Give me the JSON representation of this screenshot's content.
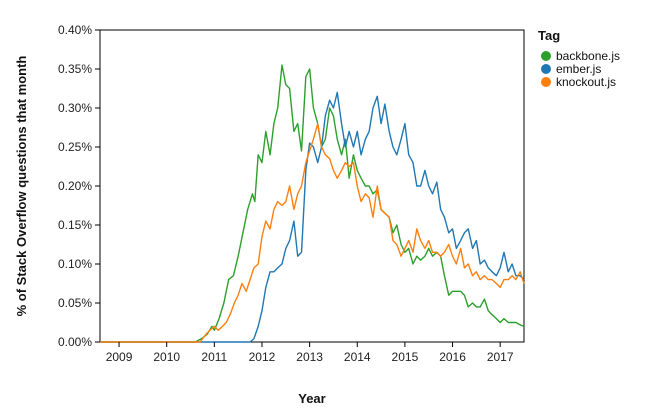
{
  "chart_data": {
    "type": "line",
    "title": "",
    "xlabel": "Year",
    "ylabel": "% of Stack Overflow questions that month",
    "xlim": [
      2008.6,
      2017.5
    ],
    "ylim": [
      0,
      0.4
    ],
    "x_ticks": [
      2009,
      2010,
      2011,
      2012,
      2013,
      2014,
      2015,
      2016,
      2017
    ],
    "x_tick_labels": [
      "2009",
      "2010",
      "2011",
      "2012",
      "2013",
      "2014",
      "2015",
      "2016",
      "2017"
    ],
    "y_ticks": [
      0,
      0.05,
      0.1,
      0.15,
      0.2,
      0.25,
      0.3,
      0.35,
      0.4
    ],
    "y_tick_labels": [
      "0.00%",
      "0.05%",
      "0.10%",
      "0.15%",
      "0.20%",
      "0.25%",
      "0.30%",
      "0.35%",
      "0.40%"
    ],
    "grid": false,
    "legend": {
      "title": "Tag",
      "placement": "right"
    },
    "series": [
      {
        "name": "backbone.js",
        "color": "#2ca02c",
        "points": [
          [
            2008.6,
            0
          ],
          [
            2010.6,
            0
          ],
          [
            2010.75,
            0.005
          ],
          [
            2010.85,
            0.01
          ],
          [
            2010.95,
            0.02
          ],
          [
            2011.0,
            0.015
          ],
          [
            2011.1,
            0.03
          ],
          [
            2011.2,
            0.05
          ],
          [
            2011.3,
            0.08
          ],
          [
            2011.4,
            0.085
          ],
          [
            2011.5,
            0.11
          ],
          [
            2011.6,
            0.14
          ],
          [
            2011.7,
            0.17
          ],
          [
            2011.8,
            0.19
          ],
          [
            2011.85,
            0.18
          ],
          [
            2011.92,
            0.24
          ],
          [
            2012.0,
            0.23
          ],
          [
            2012.08,
            0.27
          ],
          [
            2012.17,
            0.24
          ],
          [
            2012.25,
            0.28
          ],
          [
            2012.33,
            0.3
          ],
          [
            2012.42,
            0.355
          ],
          [
            2012.5,
            0.33
          ],
          [
            2012.58,
            0.325
          ],
          [
            2012.67,
            0.27
          ],
          [
            2012.75,
            0.28
          ],
          [
            2012.83,
            0.245
          ],
          [
            2012.92,
            0.34
          ],
          [
            2013.0,
            0.35
          ],
          [
            2013.08,
            0.3
          ],
          [
            2013.17,
            0.28
          ],
          [
            2013.25,
            0.25
          ],
          [
            2013.33,
            0.26
          ],
          [
            2013.42,
            0.3
          ],
          [
            2013.5,
            0.29
          ],
          [
            2013.58,
            0.26
          ],
          [
            2013.67,
            0.24
          ],
          [
            2013.75,
            0.26
          ],
          [
            2013.83,
            0.21
          ],
          [
            2013.92,
            0.24
          ],
          [
            2014.0,
            0.22
          ],
          [
            2014.08,
            0.21
          ],
          [
            2014.17,
            0.2
          ],
          [
            2014.25,
            0.2
          ],
          [
            2014.33,
            0.19
          ],
          [
            2014.42,
            0.195
          ],
          [
            2014.5,
            0.17
          ],
          [
            2014.58,
            0.165
          ],
          [
            2014.67,
            0.16
          ],
          [
            2014.75,
            0.14
          ],
          [
            2014.83,
            0.15
          ],
          [
            2014.92,
            0.125
          ],
          [
            2015.0,
            0.115
          ],
          [
            2015.08,
            0.12
          ],
          [
            2015.17,
            0.1
          ],
          [
            2015.25,
            0.11
          ],
          [
            2015.33,
            0.105
          ],
          [
            2015.42,
            0.11
          ],
          [
            2015.5,
            0.12
          ],
          [
            2015.58,
            0.11
          ],
          [
            2015.67,
            0.115
          ],
          [
            2015.75,
            0.11
          ],
          [
            2015.83,
            0.085
          ],
          [
            2015.92,
            0.06
          ],
          [
            2016.0,
            0.065
          ],
          [
            2016.08,
            0.065
          ],
          [
            2016.17,
            0.065
          ],
          [
            2016.25,
            0.06
          ],
          [
            2016.33,
            0.045
          ],
          [
            2016.42,
            0.05
          ],
          [
            2016.5,
            0.045
          ],
          [
            2016.58,
            0.045
          ],
          [
            2016.67,
            0.055
          ],
          [
            2016.75,
            0.04
          ],
          [
            2016.83,
            0.035
          ],
          [
            2016.92,
            0.03
          ],
          [
            2017.0,
            0.025
          ],
          [
            2017.08,
            0.03
          ],
          [
            2017.17,
            0.025
          ],
          [
            2017.25,
            0.025
          ],
          [
            2017.33,
            0.025
          ],
          [
            2017.42,
            0.022
          ],
          [
            2017.5,
            0.02
          ]
        ]
      },
      {
        "name": "ember.js",
        "color": "#1f77b4",
        "points": [
          [
            2008.6,
            0
          ],
          [
            2011.75,
            0
          ],
          [
            2011.83,
            0.004
          ],
          [
            2011.92,
            0.02
          ],
          [
            2012.0,
            0.04
          ],
          [
            2012.08,
            0.07
          ],
          [
            2012.17,
            0.09
          ],
          [
            2012.25,
            0.09
          ],
          [
            2012.33,
            0.095
          ],
          [
            2012.42,
            0.1
          ],
          [
            2012.5,
            0.12
          ],
          [
            2012.58,
            0.13
          ],
          [
            2012.67,
            0.155
          ],
          [
            2012.75,
            0.11
          ],
          [
            2012.83,
            0.115
          ],
          [
            2012.92,
            0.22
          ],
          [
            2013.0,
            0.255
          ],
          [
            2013.08,
            0.25
          ],
          [
            2013.17,
            0.23
          ],
          [
            2013.25,
            0.25
          ],
          [
            2013.33,
            0.29
          ],
          [
            2013.42,
            0.31
          ],
          [
            2013.5,
            0.3
          ],
          [
            2013.58,
            0.32
          ],
          [
            2013.67,
            0.28
          ],
          [
            2013.75,
            0.25
          ],
          [
            2013.83,
            0.27
          ],
          [
            2013.92,
            0.25
          ],
          [
            2014.0,
            0.27
          ],
          [
            2014.08,
            0.24
          ],
          [
            2014.17,
            0.26
          ],
          [
            2014.25,
            0.27
          ],
          [
            2014.33,
            0.3
          ],
          [
            2014.42,
            0.315
          ],
          [
            2014.5,
            0.28
          ],
          [
            2014.58,
            0.305
          ],
          [
            2014.67,
            0.27
          ],
          [
            2014.75,
            0.25
          ],
          [
            2014.83,
            0.24
          ],
          [
            2014.92,
            0.26
          ],
          [
            2015.0,
            0.28
          ],
          [
            2015.08,
            0.24
          ],
          [
            2015.17,
            0.23
          ],
          [
            2015.25,
            0.2
          ],
          [
            2015.33,
            0.2
          ],
          [
            2015.42,
            0.22
          ],
          [
            2015.5,
            0.2
          ],
          [
            2015.58,
            0.19
          ],
          [
            2015.67,
            0.205
          ],
          [
            2015.75,
            0.17
          ],
          [
            2015.83,
            0.16
          ],
          [
            2015.92,
            0.14
          ],
          [
            2016.0,
            0.145
          ],
          [
            2016.08,
            0.12
          ],
          [
            2016.17,
            0.13
          ],
          [
            2016.25,
            0.14
          ],
          [
            2016.33,
            0.145
          ],
          [
            2016.42,
            0.12
          ],
          [
            2016.5,
            0.13
          ],
          [
            2016.58,
            0.1
          ],
          [
            2016.67,
            0.105
          ],
          [
            2016.75,
            0.095
          ],
          [
            2016.83,
            0.09
          ],
          [
            2016.92,
            0.085
          ],
          [
            2017.0,
            0.095
          ],
          [
            2017.08,
            0.115
          ],
          [
            2017.17,
            0.09
          ],
          [
            2017.25,
            0.1
          ],
          [
            2017.33,
            0.085
          ],
          [
            2017.42,
            0.085
          ],
          [
            2017.5,
            0.08
          ]
        ]
      },
      {
        "name": "knockout.js",
        "color": "#ff7f0e",
        "points": [
          [
            2008.6,
            0
          ],
          [
            2010.7,
            0
          ],
          [
            2010.8,
            0.008
          ],
          [
            2010.9,
            0.015
          ],
          [
            2011.0,
            0.02
          ],
          [
            2011.08,
            0.015
          ],
          [
            2011.17,
            0.02
          ],
          [
            2011.25,
            0.025
          ],
          [
            2011.33,
            0.035
          ],
          [
            2011.42,
            0.05
          ],
          [
            2011.5,
            0.06
          ],
          [
            2011.58,
            0.075
          ],
          [
            2011.67,
            0.065
          ],
          [
            2011.75,
            0.08
          ],
          [
            2011.83,
            0.095
          ],
          [
            2011.92,
            0.1
          ],
          [
            2012.0,
            0.135
          ],
          [
            2012.08,
            0.155
          ],
          [
            2012.17,
            0.145
          ],
          [
            2012.25,
            0.17
          ],
          [
            2012.33,
            0.18
          ],
          [
            2012.42,
            0.175
          ],
          [
            2012.5,
            0.18
          ],
          [
            2012.58,
            0.2
          ],
          [
            2012.67,
            0.17
          ],
          [
            2012.75,
            0.19
          ],
          [
            2012.83,
            0.2
          ],
          [
            2012.92,
            0.23
          ],
          [
            2013.0,
            0.245
          ],
          [
            2013.08,
            0.26
          ],
          [
            2013.17,
            0.28
          ],
          [
            2013.25,
            0.25
          ],
          [
            2013.33,
            0.24
          ],
          [
            2013.42,
            0.235
          ],
          [
            2013.5,
            0.22
          ],
          [
            2013.58,
            0.21
          ],
          [
            2013.67,
            0.22
          ],
          [
            2013.75,
            0.23
          ],
          [
            2013.83,
            0.225
          ],
          [
            2013.92,
            0.23
          ],
          [
            2014.0,
            0.2
          ],
          [
            2014.08,
            0.18
          ],
          [
            2014.17,
            0.19
          ],
          [
            2014.25,
            0.185
          ],
          [
            2014.33,
            0.16
          ],
          [
            2014.42,
            0.2
          ],
          [
            2014.5,
            0.17
          ],
          [
            2014.58,
            0.165
          ],
          [
            2014.67,
            0.16
          ],
          [
            2014.75,
            0.13
          ],
          [
            2014.83,
            0.125
          ],
          [
            2014.92,
            0.11
          ],
          [
            2015.0,
            0.12
          ],
          [
            2015.08,
            0.13
          ],
          [
            2015.17,
            0.115
          ],
          [
            2015.25,
            0.145
          ],
          [
            2015.33,
            0.13
          ],
          [
            2015.42,
            0.12
          ],
          [
            2015.5,
            0.13
          ],
          [
            2015.58,
            0.115
          ],
          [
            2015.67,
            0.115
          ],
          [
            2015.75,
            0.11
          ],
          [
            2015.83,
            0.115
          ],
          [
            2015.92,
            0.125
          ],
          [
            2016.0,
            0.11
          ],
          [
            2016.08,
            0.1
          ],
          [
            2016.17,
            0.12
          ],
          [
            2016.25,
            0.095
          ],
          [
            2016.33,
            0.1
          ],
          [
            2016.42,
            0.085
          ],
          [
            2016.5,
            0.09
          ],
          [
            2016.58,
            0.08
          ],
          [
            2016.67,
            0.085
          ],
          [
            2016.75,
            0.08
          ],
          [
            2016.83,
            0.08
          ],
          [
            2016.92,
            0.075
          ],
          [
            2017.0,
            0.07
          ],
          [
            2017.08,
            0.08
          ],
          [
            2017.17,
            0.08
          ],
          [
            2017.25,
            0.085
          ],
          [
            2017.33,
            0.08
          ],
          [
            2017.42,
            0.09
          ],
          [
            2017.5,
            0.075
          ]
        ]
      }
    ]
  }
}
